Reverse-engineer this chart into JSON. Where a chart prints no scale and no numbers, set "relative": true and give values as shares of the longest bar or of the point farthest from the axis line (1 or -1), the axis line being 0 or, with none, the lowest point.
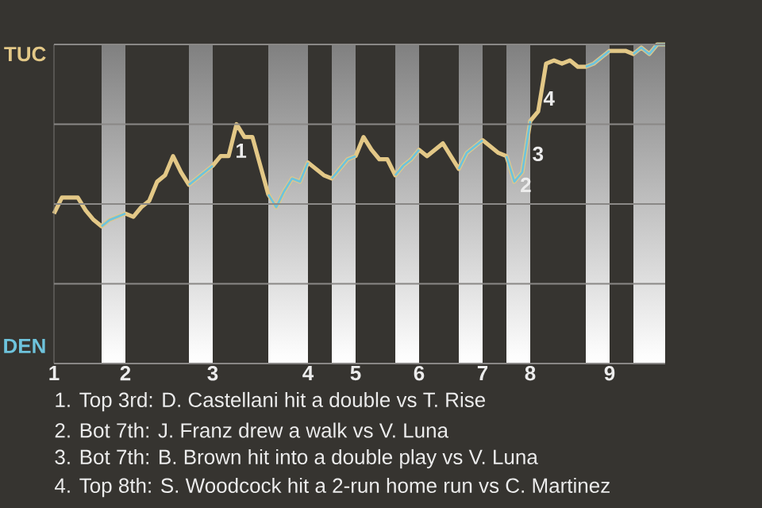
{
  "chart_data": {
    "type": "line",
    "relative": true,
    "categories": [
      "1",
      null,
      null,
      null,
      null,
      null,
      null,
      null,
      null,
      "2",
      null,
      null,
      null,
      null,
      null,
      null,
      null,
      null,
      null,
      null,
      "3",
      null,
      null,
      null,
      null,
      null,
      null,
      null,
      null,
      null,
      null,
      null,
      "4",
      null,
      null,
      null,
      null,
      null,
      "5",
      null,
      null,
      null,
      null,
      null,
      null,
      null,
      "6",
      null,
      null,
      null,
      null,
      null,
      null,
      null,
      "7",
      null,
      null,
      null,
      null,
      null,
      "8",
      null,
      null,
      null,
      null,
      null,
      null,
      null,
      null,
      null,
      "9",
      null,
      null,
      null,
      null,
      null,
      null,
      null
    ],
    "grid": "y",
    "series": [
      {
        "color": "#e3c887",
        "values": [
          0.47,
          0.52,
          0.52,
          0.52,
          0.48,
          0.45,
          0.43,
          0.45,
          0.46,
          0.47,
          0.46,
          0.49,
          0.51,
          0.57,
          0.59,
          0.65,
          0.6,
          0.56,
          0.58,
          0.6,
          0.62,
          0.65,
          0.65,
          0.75,
          0.71,
          0.71,
          0.62,
          0.53,
          0.49,
          0.54,
          0.58,
          0.57,
          0.63,
          0.61,
          0.59,
          0.58,
          0.61,
          0.64,
          0.65,
          0.71,
          0.67,
          0.64,
          0.64,
          0.59,
          0.62,
          0.64,
          0.67,
          0.65,
          0.67,
          0.69,
          0.65,
          0.61,
          0.66,
          0.68,
          0.7,
          0.68,
          0.66,
          0.65,
          0.57,
          0.6,
          0.76,
          0.79,
          0.94,
          0.95,
          0.94,
          0.95,
          0.93,
          0.93,
          0.94,
          0.96,
          0.98,
          0.98,
          0.98,
          0.97,
          0.99,
          0.97,
          1,
          1
        ]
      },
      {
        "color": "#6ec3dc",
        "values": [
          null,
          null,
          null,
          null,
          null,
          null,
          0.43,
          0.45,
          0.46,
          0.47,
          null,
          null,
          null,
          null,
          null,
          null,
          null,
          0.56,
          0.58,
          0.6,
          0.62,
          null,
          null,
          null,
          null,
          null,
          null,
          0.53,
          0.49,
          0.54,
          0.58,
          0.57,
          0.63,
          null,
          null,
          0.58,
          0.61,
          0.64,
          0.65,
          null,
          null,
          null,
          null,
          0.59,
          0.62,
          0.64,
          0.67,
          null,
          null,
          null,
          null,
          0.61,
          0.66,
          0.68,
          0.7,
          null,
          null,
          0.65,
          0.57,
          0.6,
          0.76,
          null,
          null,
          null,
          null,
          null,
          null,
          0.93,
          0.94,
          0.96,
          0.98,
          null,
          null,
          0.97,
          0.99,
          0.97,
          1,
          1
        ]
      }
    ],
    "annotations": [
      "TUC",
      "DEN",
      "1",
      "2",
      "3",
      "4",
      "1. Top 3rd: D. Castellani hit a double vs T. Rise",
      "2. Bot 7th: J. Franz drew a walk vs V. Luna",
      "3. Bot 7th: B. Brown hit into a double play vs V. Luna",
      "4. Top 8th: S. Woodcock hit a 2-run home run vs C. Martinez"
    ]
  }
}
